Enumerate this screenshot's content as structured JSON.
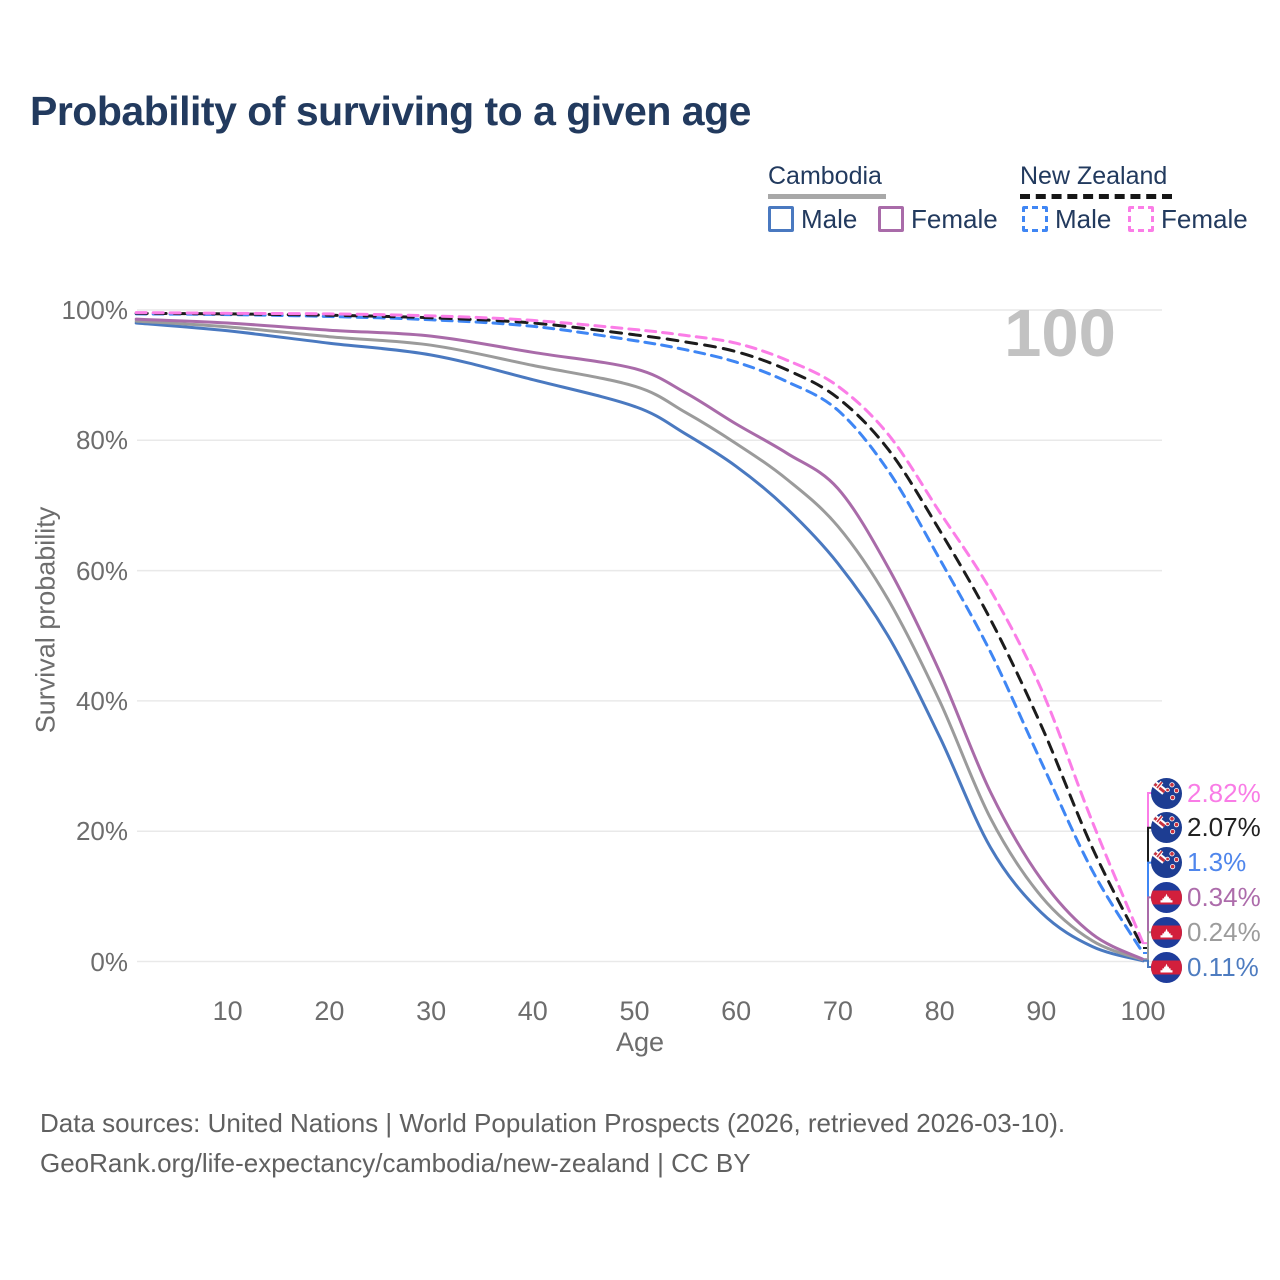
{
  "title": "Probability of surviving to a given age",
  "watermark": "100",
  "legend": {
    "cambodia": {
      "label": "Cambodia",
      "male": "Male",
      "female": "Female"
    },
    "new_zealand": {
      "label": "New Zealand",
      "male": "Male",
      "female": "Female"
    }
  },
  "axes": {
    "y_label": "Survival probability",
    "x_label": "Age",
    "y_ticks": [
      "100%",
      "80%",
      "60%",
      "40%",
      "20%",
      "0%"
    ],
    "x_ticks": [
      "10",
      "20",
      "30",
      "40",
      "50",
      "60",
      "70",
      "80",
      "90",
      "100"
    ]
  },
  "colors": {
    "title": "#223a5e",
    "grid": "#e9e9e9",
    "tick_text": "#6d6d6d",
    "watermark": "#c2c2c2",
    "cambodia_underline": "#a8a8a8",
    "new_zealand_underline": "#161616"
  },
  "chart_data": {
    "type": "line",
    "title": "Probability of surviving to a given age",
    "xlabel": "Age",
    "ylabel": "Survival probability",
    "xlim": [
      0,
      100
    ],
    "ylim": [
      0,
      100
    ],
    "grid": "horizontal",
    "legend_position": "top-right",
    "series": [
      {
        "name": "New Zealand Female",
        "country": "New Zealand",
        "sex": "Female",
        "flag": "nz",
        "color": "#fb7de7",
        "label_color": "#f97ce6",
        "dash": "dashed",
        "end_label": "2.82%",
        "points": [
          [
            1,
            99.6
          ],
          [
            10,
            99.5
          ],
          [
            20,
            99.4
          ],
          [
            30,
            99.1
          ],
          [
            40,
            98.4
          ],
          [
            50,
            97.0
          ],
          [
            55,
            96.1
          ],
          [
            60,
            94.9
          ],
          [
            65,
            92.3
          ],
          [
            70,
            88.3
          ],
          [
            75,
            80.8
          ],
          [
            80,
            69.0
          ],
          [
            85,
            57.0
          ],
          [
            90,
            41.8
          ],
          [
            95,
            21.5
          ],
          [
            100,
            2.82
          ]
        ]
      },
      {
        "name": "New Zealand Both",
        "country": "New Zealand",
        "sex": "Both",
        "flag": "nz",
        "color": "#1c1c1c",
        "label_color": "#222222",
        "dash": "dashed",
        "end_label": "2.07%",
        "points": [
          [
            1,
            99.5
          ],
          [
            10,
            99.4
          ],
          [
            20,
            99.2
          ],
          [
            30,
            98.8
          ],
          [
            40,
            98.0
          ],
          [
            50,
            96.2
          ],
          [
            55,
            95.1
          ],
          [
            60,
            93.6
          ],
          [
            65,
            90.8
          ],
          [
            70,
            86.5
          ],
          [
            75,
            78.5
          ],
          [
            80,
            66.2
          ],
          [
            85,
            52.5
          ],
          [
            90,
            36.2
          ],
          [
            95,
            17.5
          ],
          [
            100,
            2.07
          ]
        ]
      },
      {
        "name": "New Zealand Male",
        "country": "New Zealand",
        "sex": "Male",
        "flag": "nz",
        "color": "#3f86f4",
        "label_color": "#4f86ec",
        "dash": "dashed",
        "end_label": "1.3%",
        "points": [
          [
            1,
            99.4
          ],
          [
            10,
            99.3
          ],
          [
            20,
            99.0
          ],
          [
            30,
            98.5
          ],
          [
            40,
            97.5
          ],
          [
            50,
            95.3
          ],
          [
            55,
            93.9
          ],
          [
            60,
            92.0
          ],
          [
            65,
            89.0
          ],
          [
            70,
            84.6
          ],
          [
            75,
            75.2
          ],
          [
            80,
            61.8
          ],
          [
            85,
            47.5
          ],
          [
            90,
            30.6
          ],
          [
            95,
            14.0
          ],
          [
            100,
            1.3
          ]
        ]
      },
      {
        "name": "Cambodia Female",
        "country": "Cambodia",
        "sex": "Female",
        "flag": "kh",
        "color": "#a96ba9",
        "label_color": "#ad6cab",
        "dash": "solid",
        "end_label": "0.34%",
        "points": [
          [
            1,
            98.6
          ],
          [
            10,
            98.0
          ],
          [
            20,
            96.9
          ],
          [
            30,
            96.0
          ],
          [
            40,
            93.5
          ],
          [
            50,
            91.0
          ],
          [
            55,
            87.3
          ],
          [
            60,
            82.5
          ],
          [
            65,
            78.0
          ],
          [
            70,
            72.6
          ],
          [
            75,
            60.3
          ],
          [
            80,
            44.5
          ],
          [
            85,
            26.0
          ],
          [
            90,
            12.6
          ],
          [
            95,
            4.2
          ],
          [
            100,
            0.34
          ]
        ]
      },
      {
        "name": "Cambodia Both",
        "country": "Cambodia",
        "sex": "Both",
        "flag": "kh",
        "color": "#9b9b9b",
        "label_color": "#9c9c9c",
        "dash": "solid",
        "end_label": "0.24%",
        "points": [
          [
            1,
            98.3
          ],
          [
            10,
            97.4
          ],
          [
            20,
            95.9
          ],
          [
            30,
            94.6
          ],
          [
            40,
            91.5
          ],
          [
            50,
            88.3
          ],
          [
            55,
            84.3
          ],
          [
            60,
            79.5
          ],
          [
            65,
            74.0
          ],
          [
            70,
            66.8
          ],
          [
            75,
            55.4
          ],
          [
            80,
            40.0
          ],
          [
            85,
            22.0
          ],
          [
            90,
            10.0
          ],
          [
            95,
            3.2
          ],
          [
            100,
            0.24
          ]
        ]
      },
      {
        "name": "Cambodia Male",
        "country": "Cambodia",
        "sex": "Male",
        "flag": "kh",
        "color": "#4a79c0",
        "label_color": "#4e7cc0",
        "dash": "solid",
        "end_label": "0.11%",
        "points": [
          [
            1,
            98.0
          ],
          [
            10,
            96.8
          ],
          [
            20,
            94.9
          ],
          [
            30,
            93.1
          ],
          [
            40,
            89.3
          ],
          [
            50,
            85.2
          ],
          [
            55,
            81.0
          ],
          [
            60,
            76.0
          ],
          [
            65,
            69.5
          ],
          [
            70,
            61.1
          ],
          [
            75,
            49.8
          ],
          [
            80,
            34.5
          ],
          [
            85,
            17.5
          ],
          [
            90,
            7.5
          ],
          [
            95,
            2.3
          ],
          [
            100,
            0.11
          ]
        ]
      }
    ]
  },
  "footer": {
    "line1": "Data sources: United Nations | World Population Prospects (2026, retrieved 2026-03-10).",
    "line2": "GeoRank.org/life-expectancy/cambodia/new-zealand | CC BY"
  }
}
